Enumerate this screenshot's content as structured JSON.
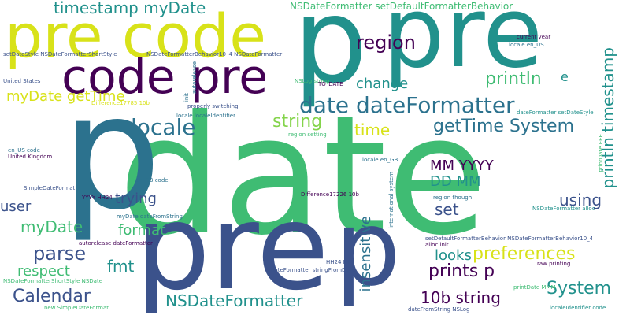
{
  "palette": {
    "purple": "#440154",
    "indigo": "#3b528b",
    "blue": "#2c728e",
    "teal": "#21918c",
    "green": "#3fbc73",
    "lime": "#84d44b",
    "yellow": "#d8e219"
  },
  "words": [
    {
      "text": "date",
      "color": "green"
    },
    {
      "text": "p",
      "color": "blue"
    },
    {
      "text": "pre",
      "color": "teal"
    },
    {
      "text": "pre",
      "color": "indigo"
    },
    {
      "text": "p",
      "color": "teal"
    },
    {
      "text": "pre code",
      "color": "yellow"
    },
    {
      "text": "code pre",
      "color": "purple"
    },
    {
      "text": "p",
      "color": "indigo"
    },
    {
      "text": "timestamp myDate",
      "color": "teal"
    },
    {
      "text": "NSDateFormatter setDefaultFormatterBehavior",
      "color": "green"
    },
    {
      "text": "region",
      "color": "purple"
    },
    {
      "text": "println",
      "color": "green"
    },
    {
      "text": "e",
      "color": "teal"
    },
    {
      "text": "change",
      "color": "teal"
    },
    {
      "text": "myDate getTime",
      "color": "yellow"
    },
    {
      "text": "date dateFormatter",
      "color": "blue"
    },
    {
      "text": "locale",
      "color": "blue"
    },
    {
      "text": "string",
      "color": "lime"
    },
    {
      "text": "getTime System",
      "color": "blue"
    },
    {
      "text": "time",
      "color": "yellow"
    },
    {
      "text": "println timestamp",
      "color": "teal"
    },
    {
      "text": "MM YYYY",
      "color": "purple"
    },
    {
      "text": "DD MM",
      "color": "teal"
    },
    {
      "text": "trying",
      "color": "indigo"
    },
    {
      "text": "using",
      "color": "indigo"
    },
    {
      "text": "user",
      "color": "indigo"
    },
    {
      "text": "set",
      "color": "indigo"
    },
    {
      "text": "myDate",
      "color": "green"
    },
    {
      "text": "format",
      "color": "green"
    },
    {
      "text": "parse",
      "color": "indigo"
    },
    {
      "text": "insensitive",
      "color": "blue"
    },
    {
      "text": "looks",
      "color": "teal"
    },
    {
      "text": "preferences",
      "color": "yellow"
    },
    {
      "text": "fmt",
      "color": "teal"
    },
    {
      "text": "respect",
      "color": "green"
    },
    {
      "text": "prints p",
      "color": "purple"
    },
    {
      "text": "System",
      "color": "teal"
    },
    {
      "text": "Calendar",
      "color": "indigo"
    },
    {
      "text": "NSDateFormatter",
      "color": "teal"
    },
    {
      "text": "10b string",
      "color": "purple"
    },
    {
      "text": "setDateStyle NSDateFormatterShortStyle",
      "color": "indigo"
    },
    {
      "text": "NSDateFormatterBehavior10_4 NSDateFormatter",
      "color": "indigo"
    },
    {
      "text": "United States",
      "color": "indigo"
    },
    {
      "text": "Difference17785 10b",
      "color": "yellow"
    },
    {
      "text": "properly switching",
      "color": "indigo"
    },
    {
      "text": "locale localeIdentifier",
      "color": "blue"
    },
    {
      "text": "autorelease",
      "color": "blue"
    },
    {
      "text": "init",
      "color": "blue"
    },
    {
      "text": "NSLog string",
      "color": "green"
    },
    {
      "text": "TO_DATE",
      "color": "purple"
    },
    {
      "text": "locale en_US",
      "color": "blue"
    },
    {
      "text": "current year",
      "color": "purple"
    },
    {
      "text": "dateFormatter setDateStyle",
      "color": "teal"
    },
    {
      "text": "en_US code",
      "color": "blue"
    },
    {
      "text": "United Kingdom",
      "color": "purple"
    },
    {
      "text": "region setting",
      "color": "green"
    },
    {
      "text": "locale en_GB",
      "color": "blue"
    },
    {
      "text": "en_GB code",
      "color": "blue"
    },
    {
      "text": "Difference17226 10b",
      "color": "purple"
    },
    {
      "text": "international system",
      "color": "blue"
    },
    {
      "text": "region though",
      "color": "blue"
    },
    {
      "text": "YYYY HH24",
      "color": "purple"
    },
    {
      "text": "myDate dateFromString",
      "color": "blue"
    },
    {
      "text": "NSDateFormatter alloc",
      "color": "teal"
    },
    {
      "text": "setDefaultFormatterBehavior NSDateFormatterBehavior10_4",
      "color": "indigo"
    },
    {
      "text": "alloc init",
      "color": "purple"
    },
    {
      "text": "autorelease dateFormatter",
      "color": "purple"
    },
    {
      "text": "HH24 MI",
      "color": "indigo"
    },
    {
      "text": "dateFormatter stringFromDate",
      "color": "indigo"
    },
    {
      "text": "NSDateFormatterShortStyle NSDate",
      "color": "green"
    },
    {
      "text": "raw printing",
      "color": "purple"
    },
    {
      "text": "printDate MMM",
      "color": "green"
    },
    {
      "text": "dateFromString NSLog",
      "color": "indigo"
    },
    {
      "text": "localeIdentifier code",
      "color": "teal"
    },
    {
      "text": "new SimpleDateFormat",
      "color": "green"
    },
    {
      "text": "SimpleDateFormat",
      "color": "indigo"
    },
    {
      "text": "printDate EEE",
      "color": "green"
    }
  ]
}
